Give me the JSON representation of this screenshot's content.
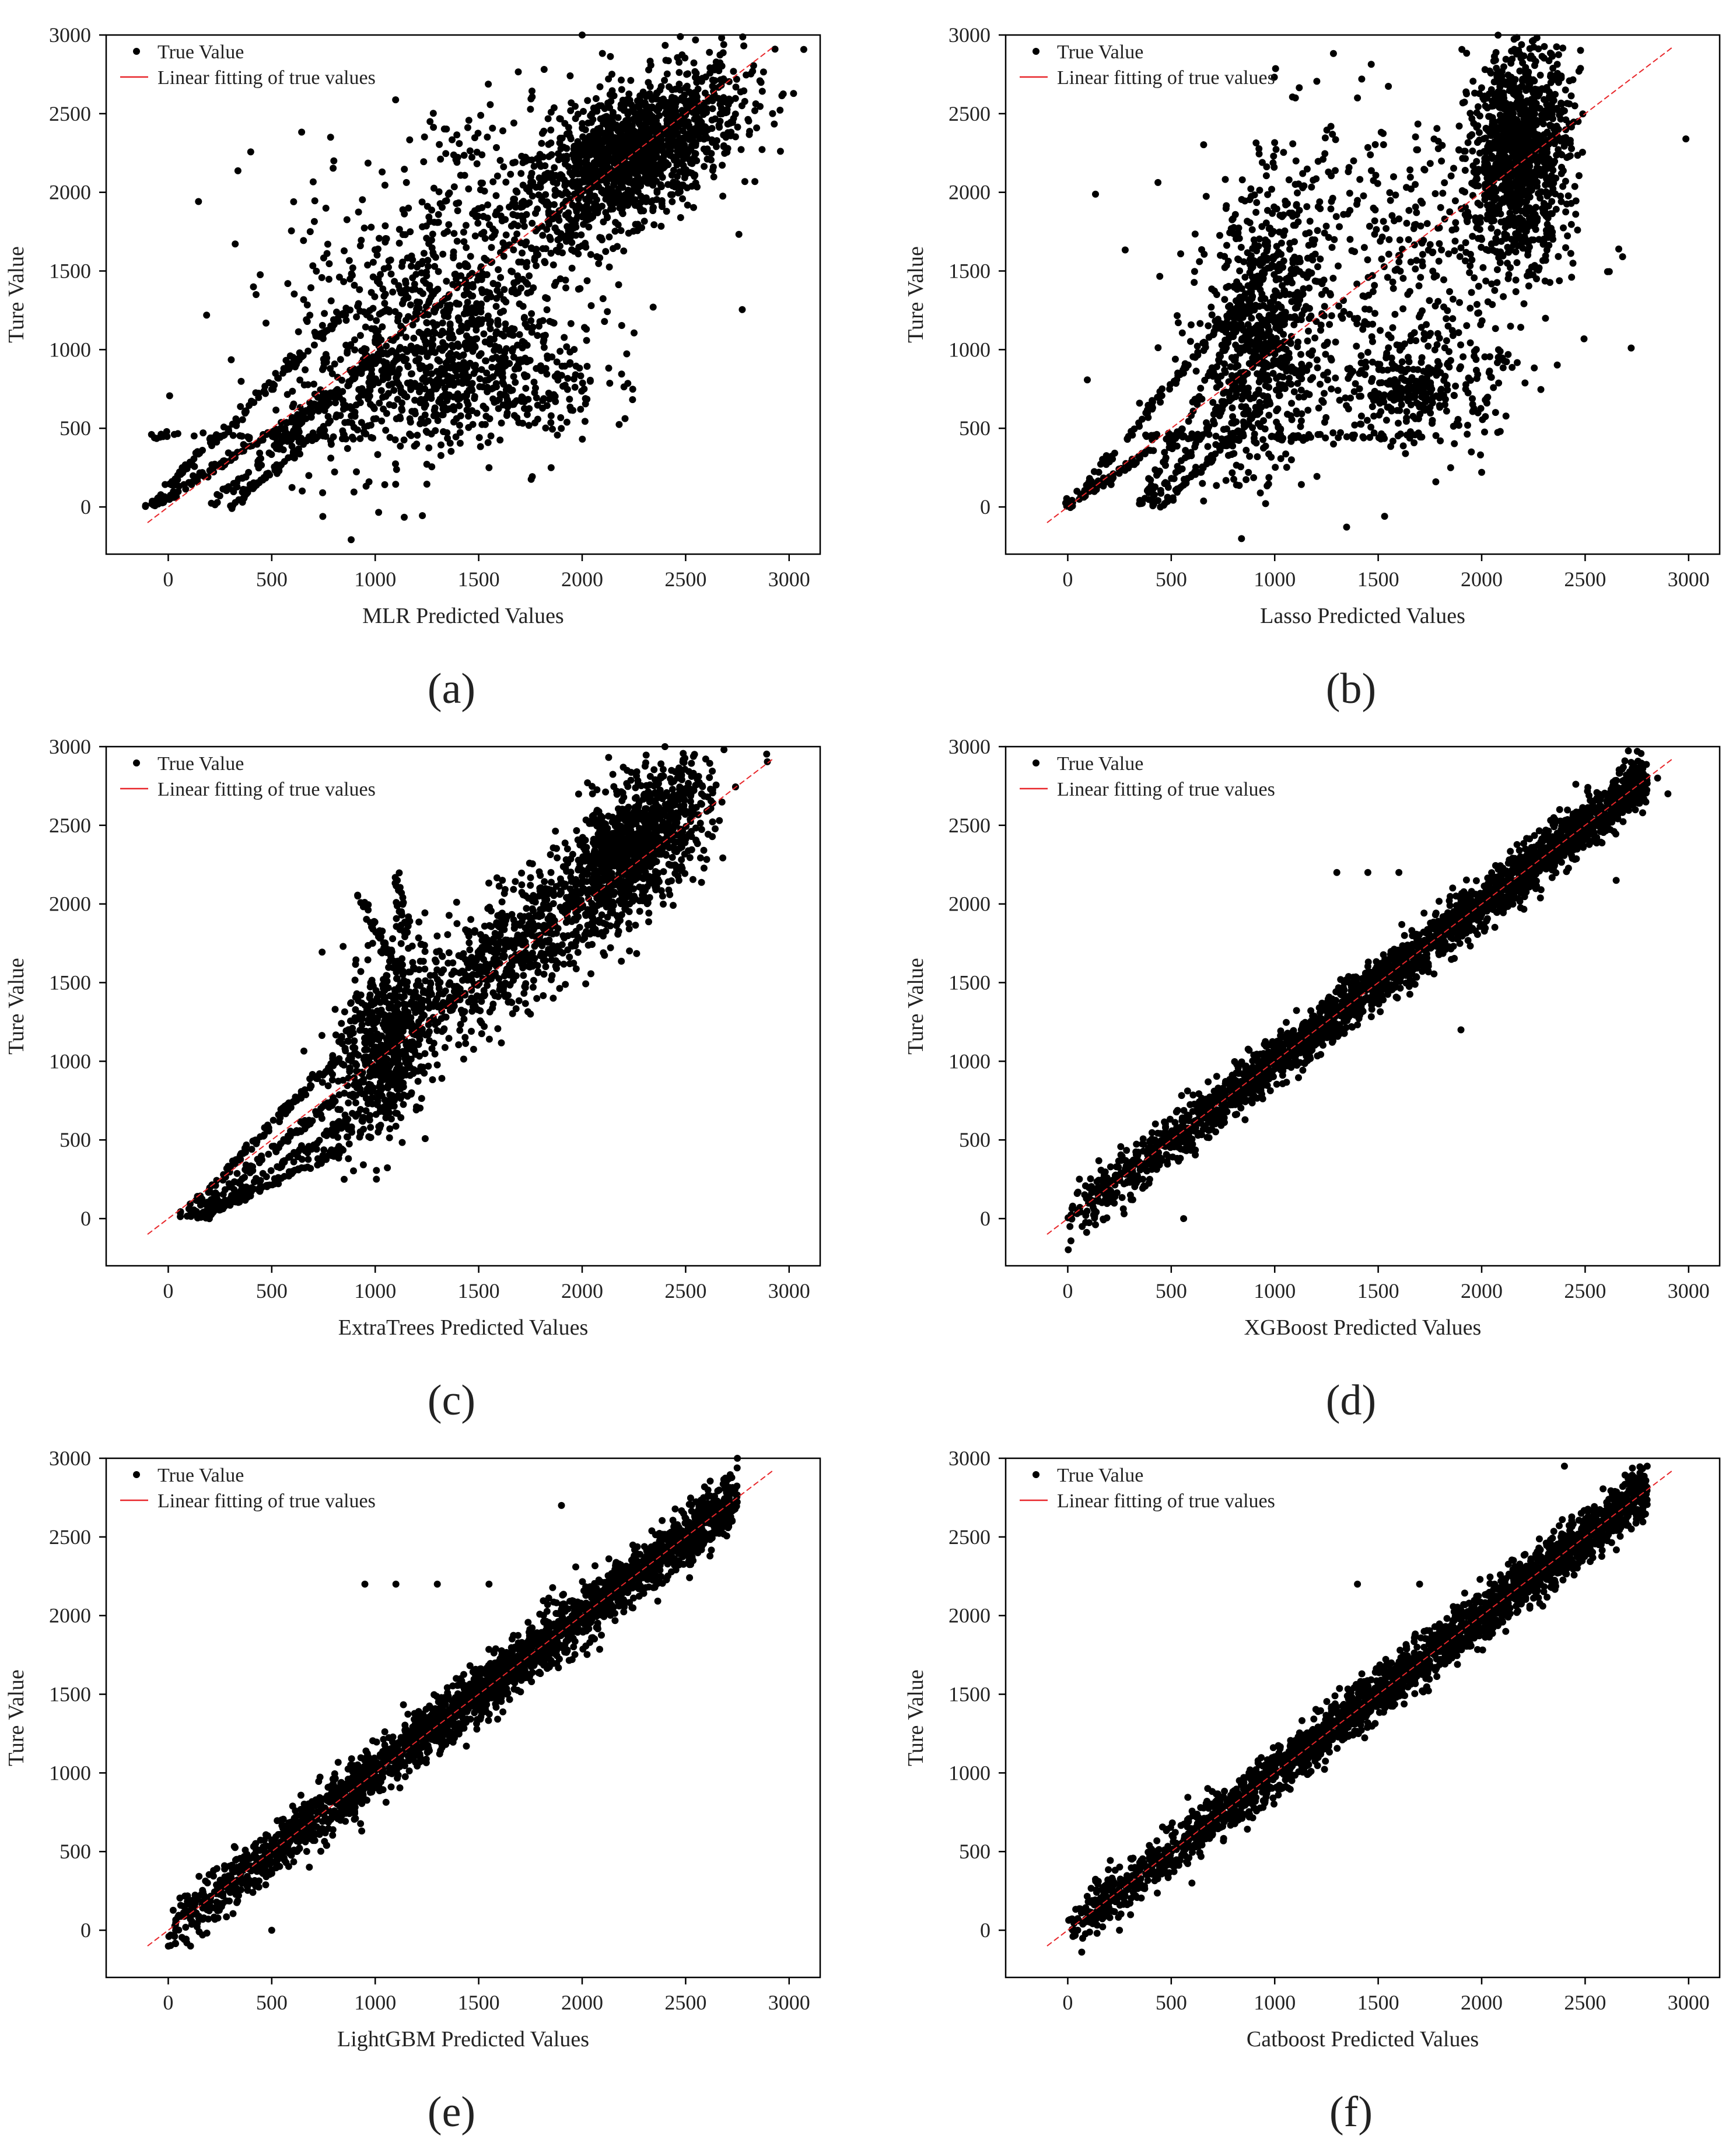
{
  "colors": {
    "point": "#000000",
    "fit_line": "#e8262a",
    "axis": "#000000",
    "background": "#ffffff"
  },
  "legend": {
    "point_label": "True Value",
    "line_label": "Linear fitting of true values",
    "placement": "top-left"
  },
  "chart_data": [
    {
      "type": "scatter",
      "panel_label": "(a)",
      "xlabel": "MLR Predicted Values",
      "ylabel": "Ture Value",
      "xlim": [
        -300,
        3150
      ],
      "ylim": [
        -300,
        3000
      ],
      "xticks": [
        0,
        500,
        1000,
        1500,
        2000,
        2500,
        3000
      ],
      "yticks": [
        0,
        500,
        1000,
        1500,
        2000,
        2500,
        3000
      ],
      "grid": false,
      "fit_line": {
        "x": [
          -100,
          2920
        ],
        "y": [
          -100,
          2920
        ]
      },
      "clusters": [
        {
          "cx": 2250,
          "cy": 2250,
          "sx": 260,
          "sy": 260,
          "rho": 0.6,
          "n": 1400
        },
        {
          "cx": 1500,
          "cy": 1800,
          "sx": 450,
          "sy": 450,
          "rho": 0.3,
          "n": 400
        },
        {
          "cx": 1200,
          "cy": 1000,
          "sx": 300,
          "sy": 380,
          "rho": 0.4,
          "n": 650
        },
        {
          "cx": 1600,
          "cy": 800,
          "sx": 250,
          "sy": 200,
          "rho": 0.0,
          "n": 300
        }
      ],
      "streaks": [
        {
          "x0": -100,
          "y0": 0,
          "x1": 900,
          "y1": 1300,
          "n": 120
        },
        {
          "x0": 200,
          "y0": 0,
          "x1": 1050,
          "y1": 1000,
          "n": 100
        },
        {
          "x0": 300,
          "y0": 0,
          "x1": 1100,
          "y1": 900,
          "n": 100
        },
        {
          "x0": -100,
          "y0": 450,
          "x1": 1000,
          "y1": 450,
          "n": 60
        },
        {
          "x0": -80,
          "y0": 0,
          "x1": 800,
          "y1": 720,
          "n": 140
        }
      ],
      "outliers": [
        [
          1200,
          400
        ],
        [
          1850,
          250
        ],
        [
          1550,
          250
        ],
        [
          1380,
          540
        ],
        [
          800,
          2200
        ],
        [
          1850,
          580
        ],
        [
          2000,
          3000
        ],
        [
          2920,
          2500
        ]
      ]
    },
    {
      "type": "scatter",
      "panel_label": "(b)",
      "xlabel": "Lasso Predicted Values",
      "ylabel": "Ture Value",
      "xlim": [
        -300,
        3150
      ],
      "ylim": [
        -300,
        3000
      ],
      "xticks": [
        0,
        500,
        1000,
        1500,
        2000,
        2500,
        3000
      ],
      "yticks": [
        0,
        500,
        1000,
        1500,
        2000,
        2500,
        3000
      ],
      "grid": false,
      "fit_line": {
        "x": [
          -100,
          2920
        ],
        "y": [
          -100,
          2920
        ]
      },
      "clusters": [
        {
          "cx": 2180,
          "cy": 2250,
          "sx": 120,
          "sy": 330,
          "rho": 0.1,
          "n": 1100
        },
        {
          "cx": 950,
          "cy": 1100,
          "sx": 140,
          "sy": 450,
          "rho": 0.2,
          "n": 600
        },
        {
          "cx": 1500,
          "cy": 1500,
          "sx": 450,
          "sy": 550,
          "rho": 0.1,
          "n": 500
        },
        {
          "cx": 1700,
          "cy": 750,
          "sx": 200,
          "sy": 150,
          "rho": 0.0,
          "n": 250
        }
      ],
      "streaks": [
        {
          "x0": 0,
          "y0": 0,
          "x1": 900,
          "y1": 1400,
          "n": 100
        },
        {
          "x0": 350,
          "y0": 0,
          "x1": 950,
          "y1": 1500,
          "n": 100
        },
        {
          "x0": 400,
          "y0": 0,
          "x1": 1050,
          "y1": 1200,
          "n": 100
        },
        {
          "x0": 450,
          "y0": 0,
          "x1": 1150,
          "y1": 900,
          "n": 100
        },
        {
          "x0": 300,
          "y0": 450,
          "x1": 1800,
          "y1": 450,
          "n": 70
        },
        {
          "x0": 0,
          "y0": 0,
          "x1": 500,
          "y1": 450,
          "n": 60
        }
      ],
      "outliers": [
        [
          1100,
          2600
        ],
        [
          1850,
          250
        ],
        [
          2000,
          220
        ],
        [
          1950,
          350
        ],
        [
          2450,
          2550
        ],
        [
          1400,
          2600
        ]
      ]
    },
    {
      "type": "scatter",
      "panel_label": "(c)",
      "xlabel": "ExtraTrees Predicted Values",
      "ylabel": "Ture Value",
      "xlim": [
        -300,
        3150
      ],
      "ylim": [
        -300,
        3000
      ],
      "xticks": [
        0,
        500,
        1000,
        1500,
        2000,
        2500,
        3000
      ],
      "yticks": [
        0,
        500,
        1000,
        1500,
        2000,
        2500,
        3000
      ],
      "grid": false,
      "fit_line": {
        "x": [
          -100,
          2920
        ],
        "y": [
          -100,
          2920
        ]
      },
      "clusters": [
        {
          "cx": 2250,
          "cy": 2350,
          "sx": 180,
          "sy": 250,
          "rho": 0.6,
          "n": 1100
        },
        {
          "cx": 1050,
          "cy": 1100,
          "sx": 130,
          "sy": 300,
          "rho": 0.4,
          "n": 700
        },
        {
          "cx": 1650,
          "cy": 1700,
          "sx": 250,
          "sy": 280,
          "rho": 0.7,
          "n": 600
        }
      ],
      "streaks": [
        {
          "x0": 50,
          "y0": 0,
          "x1": 800,
          "y1": 1000,
          "n": 100
        },
        {
          "x0": 100,
          "y0": 0,
          "x1": 850,
          "y1": 800,
          "n": 100
        },
        {
          "x0": 150,
          "y0": 0,
          "x1": 850,
          "y1": 600,
          "n": 100
        },
        {
          "x0": 150,
          "y0": 0,
          "x1": 850,
          "y1": 450,
          "n": 100
        },
        {
          "x0": 900,
          "y0": 2100,
          "x1": 1100,
          "y1": 1600,
          "n": 40
        },
        {
          "x0": 1100,
          "y0": 2200,
          "x1": 1150,
          "y1": 1700,
          "n": 30
        }
      ],
      "outliers": [
        [
          850,
          250
        ],
        [
          2050,
          2700
        ],
        [
          2400,
          3000
        ],
        [
          1750,
          1300
        ]
      ]
    },
    {
      "type": "scatter",
      "panel_label": "(d)",
      "xlabel": "XGBoost Predicted Values",
      "ylabel": "Ture Value",
      "xlim": [
        -300,
        3150
      ],
      "ylim": [
        -300,
        3000
      ],
      "xticks": [
        0,
        500,
        1000,
        1500,
        2000,
        2500,
        3000
      ],
      "yticks": [
        0,
        500,
        1000,
        1500,
        2000,
        2500,
        3000
      ],
      "grid": false,
      "fit_line": {
        "x": [
          -100,
          2920
        ],
        "y": [
          -100,
          2920
        ]
      },
      "band": {
        "x0": 0,
        "x1": 2800,
        "sd": 80,
        "n": 2600
      },
      "outliers": [
        [
          560,
          0
        ],
        [
          1900,
          1200
        ],
        [
          2850,
          2800
        ],
        [
          2900,
          2700
        ],
        [
          1300,
          2200
        ],
        [
          1600,
          2200
        ],
        [
          1450,
          2200
        ],
        [
          2650,
          2150
        ]
      ]
    },
    {
      "type": "scatter",
      "panel_label": "(e)",
      "xlabel": "LightGBM Predicted Values",
      "ylabel": "Ture Value",
      "xlim": [
        -300,
        3150
      ],
      "ylim": [
        -300,
        3000
      ],
      "xticks": [
        0,
        500,
        1000,
        1500,
        2000,
        2500,
        3000
      ],
      "yticks": [
        0,
        500,
        1000,
        1500,
        2000,
        2500,
        3000
      ],
      "grid": false,
      "fit_line": {
        "x": [
          -100,
          2920
        ],
        "y": [
          -100,
          2920
        ]
      },
      "band": {
        "x0": 0,
        "x1": 2750,
        "sd": 90,
        "n": 2600
      },
      "outliers": [
        [
          500,
          0
        ],
        [
          950,
          2200
        ],
        [
          1100,
          2200
        ],
        [
          1300,
          2200
        ],
        [
          1550,
          2200
        ],
        [
          1900,
          2700
        ],
        [
          2750,
          3000
        ]
      ]
    },
    {
      "type": "scatter",
      "panel_label": "(f)",
      "xlabel": "Catboost Predicted Values",
      "ylabel": "Ture Value",
      "xlim": [
        -300,
        3150
      ],
      "ylim": [
        -300,
        3000
      ],
      "xticks": [
        0,
        500,
        1000,
        1500,
        2000,
        2500,
        3000
      ],
      "yticks": [
        0,
        500,
        1000,
        1500,
        2000,
        2500,
        3000
      ],
      "grid": false,
      "fit_line": {
        "x": [
          -100,
          2920
        ],
        "y": [
          -100,
          2920
        ]
      },
      "band": {
        "x0": 0,
        "x1": 2800,
        "sd": 80,
        "n": 2600
      },
      "outliers": [
        [
          250,
          0
        ],
        [
          600,
          300
        ],
        [
          1400,
          2200
        ],
        [
          1700,
          2200
        ],
        [
          2800,
          2950
        ],
        [
          2400,
          2950
        ]
      ]
    }
  ]
}
